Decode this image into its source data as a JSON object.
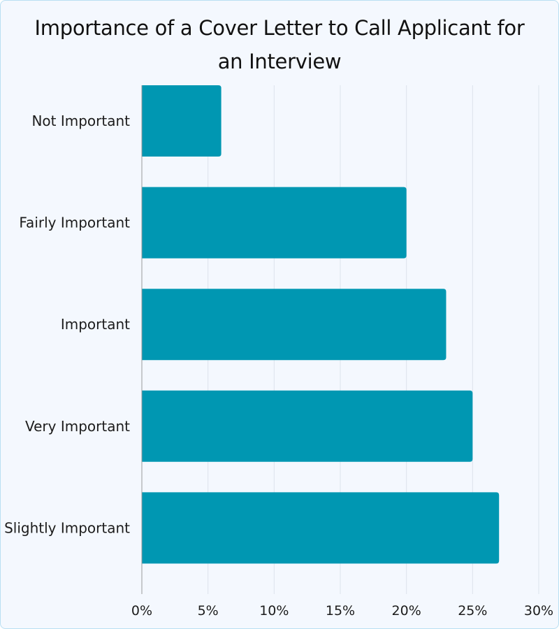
{
  "chart_data": {
    "type": "bar",
    "orientation": "horizontal",
    "title": "Importance of a Cover Letter to Call Applicant for an Interview",
    "title_lines": [
      "Importance of a Cover Letter to Call Applicant for",
      "an Interview"
    ],
    "categories": [
      "Not Important",
      "Fairly Important",
      "Important",
      "Very Important",
      "Slightly Important"
    ],
    "values": [
      6,
      20,
      23,
      25,
      27
    ],
    "xlim": [
      0,
      30
    ],
    "xticks": [
      0,
      5,
      10,
      15,
      20,
      25,
      30
    ],
    "xtick_labels": [
      "0%",
      "5%",
      "10%",
      "15%",
      "20%",
      "25%",
      "30%"
    ],
    "grid": "vertical",
    "bar_color": "#0097b2",
    "grid_color": "#dde3ec",
    "axis_color": "#9a9a9a"
  }
}
